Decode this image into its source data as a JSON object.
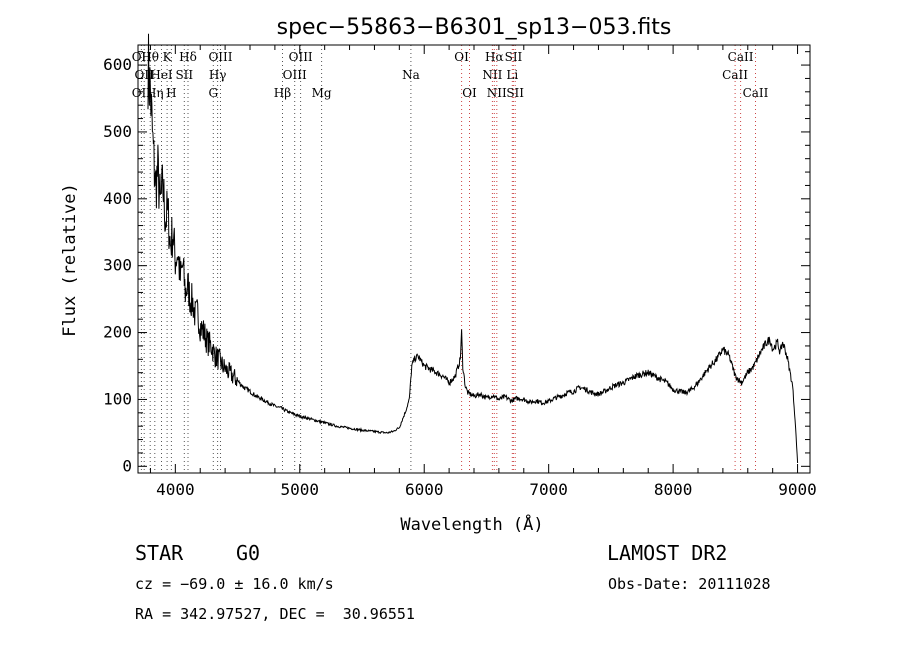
{
  "chart_data": {
    "type": "line",
    "title": "spec−55863−B6301_sp13−053.fits",
    "xlabel": "Wavelength (Å)",
    "ylabel": "Flux (relative)",
    "xlim": [
      3700,
      9100
    ],
    "ylim": [
      -10,
      630
    ],
    "xticks": [
      4000,
      5000,
      6000,
      7000,
      8000,
      9000
    ],
    "yticks": [
      0,
      100,
      200,
      300,
      400,
      500,
      600
    ],
    "grid": false,
    "series": [
      {
        "x": [
          3780,
          3800,
          3820,
          3840,
          3860,
          3880,
          3900,
          3920,
          3940,
          3960,
          3980,
          4000,
          4020,
          4040,
          4060,
          4080,
          4100,
          4120,
          4140,
          4160,
          4180,
          4200,
          4230,
          4260,
          4290,
          4320,
          4350,
          4380,
          4420,
          4460,
          4500,
          4550,
          4600,
          4650,
          4700,
          4750,
          4800,
          4850,
          4900,
          4950,
          5000,
          5100,
          5200,
          5300,
          5400,
          5500,
          5600,
          5700,
          5750,
          5800,
          5850,
          5880,
          5900,
          5920,
          5950,
          6000,
          6050,
          6100,
          6150,
          6200,
          6250,
          6290,
          6300,
          6310,
          6330,
          6350,
          6400,
          6450,
          6500,
          6550,
          6600,
          6650,
          6700,
          6750,
          6800,
          6850,
          6900,
          6950,
          7000,
          7050,
          7100,
          7150,
          7200,
          7250,
          7300,
          7350,
          7400,
          7450,
          7500,
          7550,
          7600,
          7650,
          7700,
          7750,
          7800,
          7850,
          7900,
          7950,
          8000,
          8050,
          8100,
          8150,
          8200,
          8250,
          8300,
          8350,
          8400,
          8450,
          8500,
          8550,
          8600,
          8650,
          8700,
          8750,
          8780,
          8800,
          8820,
          8840,
          8860,
          8880,
          8900,
          8920,
          8940,
          8960,
          8980,
          9000
        ],
        "y": [
          600,
          560,
          480,
          420,
          440,
          390,
          420,
          370,
          380,
          330,
          350,
          310,
          320,
          280,
          300,
          260,
          270,
          250,
          245,
          225,
          230,
          210,
          200,
          185,
          180,
          165,
          160,
          150,
          142,
          135,
          128,
          118,
          112,
          105,
          100,
          95,
          90,
          87,
          82,
          78,
          75,
          70,
          65,
          60,
          57,
          54,
          52,
          50,
          52,
          58,
          82,
          100,
          150,
          160,
          165,
          150,
          145,
          140,
          135,
          125,
          135,
          160,
          200,
          150,
          120,
          110,
          105,
          108,
          102,
          106,
          100,
          104,
          98,
          102,
          100,
          96,
          98,
          95,
          97,
          102,
          105,
          110,
          112,
          118,
          115,
          110,
          108,
          112,
          118,
          122,
          125,
          130,
          135,
          138,
          140,
          135,
          130,
          125,
          115,
          112,
          110,
          115,
          125,
          138,
          150,
          160,
          175,
          165,
          135,
          125,
          140,
          150,
          170,
          185,
          190,
          175,
          180,
          185,
          170,
          185,
          175,
          160,
          140,
          120,
          70,
          5
        ]
      }
    ],
    "line_annotations": {
      "row1": [
        {
          "w": 3727,
          "label": "OII"
        },
        {
          "w": 3798,
          "label": "Hθ"
        },
        {
          "w": 3934,
          "label": "K"
        },
        {
          "w": 4102,
          "label": "Hδ"
        },
        {
          "w": 4363,
          "label": "OIII"
        },
        {
          "w": 5007,
          "label": "OIII"
        },
        {
          "w": 6300,
          "label": "OI"
        },
        {
          "w": 6563,
          "label": "Hα"
        },
        {
          "w": 6717,
          "label": "SII"
        },
        {
          "w": 8542,
          "label": "CaII"
        }
      ],
      "row2": [
        {
          "w": 3750,
          "label": "OII"
        },
        {
          "w": 3889,
          "label": "HeI"
        },
        {
          "w": 4072,
          "label": "SII"
        },
        {
          "w": 4340,
          "label": "Hγ"
        },
        {
          "w": 4959,
          "label": "OIII"
        },
        {
          "w": 5893,
          "label": "Na"
        },
        {
          "w": 6548,
          "label": "NII"
        },
        {
          "w": 6708,
          "label": "Li"
        },
        {
          "w": 8498,
          "label": "CaII"
        }
      ],
      "row3": [
        {
          "w": 3727,
          "label": "OII"
        },
        {
          "w": 3835,
          "label": "Hη"
        },
        {
          "w": 3968,
          "label": "H"
        },
        {
          "w": 4305,
          "label": "G"
        },
        {
          "w": 4861,
          "label": "Hβ"
        },
        {
          "w": 5175,
          "label": "Mg"
        },
        {
          "w": 6364,
          "label": "OI"
        },
        {
          "w": 6583,
          "label": "NII"
        },
        {
          "w": 6731,
          "label": "SII"
        },
        {
          "w": 8662,
          "label": "CaII"
        }
      ]
    }
  },
  "info": {
    "object_class": "STAR",
    "subclass": "G0",
    "survey": "LAMOST DR2",
    "redshift_line": "cz = −69.0 ± 16.0 km/s",
    "obs_date_line": "Obs-Date: 20111028",
    "coords_line": "RA = 342.97527, DEC =  30.96551"
  }
}
